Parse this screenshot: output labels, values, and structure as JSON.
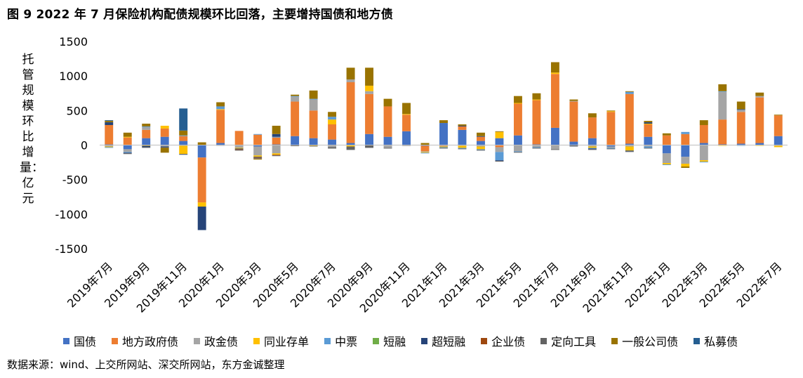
{
  "title": "图 9  2022 年 7 月保险机构配债规模环比回落，主要增持国债和地方债",
  "source": "数据来源：wind、上交所网站、深交所网站，东方金诚整理",
  "chart_data": {
    "type": "bar",
    "stacked": true,
    "title": "图 9  2022 年 7 月保险机构配债规模环比回落，主要增持国债和地方债",
    "ylabel": "托管规模环比增量：亿元",
    "ylim": [
      -1500,
      1500
    ],
    "yticks": [
      1500,
      1000,
      500,
      0,
      -500,
      -1000,
      -1500
    ],
    "ytick_labels": [
      "1500",
      "1000",
      "500",
      "0",
      "-500",
      "-1000",
      "-1500"
    ],
    "grid": false,
    "legend_position": "bottom",
    "x_tick_labels": [
      "2019年7月",
      "2019年9月",
      "2019年11月",
      "2020年1月",
      "2020年3月",
      "2020年5月",
      "2020年7月",
      "2020年9月",
      "2020年11月",
      "2021年1月",
      "2021年3月",
      "2021年5月",
      "2021年7月",
      "2021年9月",
      "2021年11月",
      "2022年1月",
      "2022年3月",
      "2022年5月",
      "2022年7月"
    ],
    "categories": [
      "2019-07",
      "2019-08",
      "2019-09",
      "2019-10",
      "2019-11",
      "2019-12",
      "2020-01",
      "2020-02",
      "2020-03",
      "2020-04",
      "2020-05",
      "2020-06",
      "2020-07",
      "2020-08",
      "2020-09",
      "2020-10",
      "2020-11",
      "2020-12",
      "2021-01",
      "2021-02",
      "2021-03",
      "2021-04",
      "2021-05",
      "2021-06",
      "2021-07",
      "2021-08",
      "2021-09",
      "2021-10",
      "2021-11",
      "2021-12",
      "2022-01",
      "2022-02",
      "2022-03",
      "2022-04",
      "2022-05",
      "2022-06",
      "2022-07"
    ],
    "series": [
      {
        "name": "国债",
        "color": "#4472C4",
        "values": [
          10,
          -60,
          100,
          120,
          60,
          -180,
          30,
          5,
          -20,
          10,
          130,
          100,
          80,
          30,
          160,
          120,
          200,
          -10,
          320,
          220,
          60,
          100,
          140,
          10,
          250,
          50,
          100,
          -20,
          20,
          120,
          -120,
          -170,
          30,
          10,
          20,
          30,
          130
        ]
      },
      {
        "name": "地方政府债",
        "color": "#ED7D31",
        "values": [
          280,
          110,
          120,
          120,
          70,
          -650,
          480,
          200,
          150,
          100,
          500,
          400,
          220,
          880,
          580,
          440,
          240,
          -80,
          -10,
          50,
          60,
          -30,
          460,
          640,
          780,
          580,
          300,
          480,
          720,
          180,
          140,
          160,
          260,
          360,
          460,
          660,
          300
        ]
      },
      {
        "name": "政金债",
        "color": "#A5A5A5",
        "values": [
          -20,
          -40,
          40,
          -20,
          -10,
          0,
          -10,
          -40,
          -130,
          -120,
          70,
          160,
          -30,
          40,
          40,
          -40,
          0,
          -10,
          -10,
          -10,
          -20,
          -70,
          -90,
          -30,
          -60,
          10,
          -20,
          -20,
          -20,
          -20,
          -140,
          -100,
          -220,
          400,
          30,
          20,
          -10
        ]
      },
      {
        "name": "同业存单",
        "color": "#FFC000",
        "values": [
          -10,
          10,
          -10,
          40,
          -120,
          -60,
          10,
          -10,
          -20,
          -20,
          -5,
          -10,
          70,
          -20,
          80,
          0,
          10,
          -10,
          -10,
          -30,
          -40,
          90,
          10,
          10,
          20,
          0,
          -20,
          10,
          -60,
          10,
          -20,
          -40,
          -20,
          -10,
          0,
          -10,
          -20
        ]
      },
      {
        "name": "中票",
        "color": "#5B9BD5",
        "values": [
          -10,
          -10,
          10,
          0,
          10,
          0,
          40,
          0,
          10,
          10,
          10,
          10,
          40,
          0,
          0,
          0,
          0,
          -10,
          -10,
          -10,
          -10,
          -120,
          -10,
          -10,
          0,
          0,
          -10,
          -10,
          30,
          -20,
          -10,
          30,
          -10,
          10,
          -10,
          0,
          0
        ]
      },
      {
        "name": "短融",
        "color": "#70AD47",
        "values": [
          0,
          0,
          0,
          0,
          0,
          0,
          0,
          0,
          0,
          0,
          0,
          0,
          0,
          0,
          0,
          0,
          0,
          0,
          0,
          0,
          0,
          0,
          0,
          0,
          0,
          0,
          0,
          0,
          0,
          0,
          0,
          0,
          0,
          0,
          0,
          0,
          0
        ]
      },
      {
        "name": "超短融",
        "color": "#264478",
        "values": [
          40,
          -10,
          -20,
          -10,
          -10,
          -340,
          0,
          -10,
          -10,
          40,
          0,
          0,
          0,
          0,
          0,
          0,
          0,
          0,
          0,
          10,
          10,
          -10,
          0,
          0,
          0,
          -10,
          -10,
          0,
          -10,
          20,
          0,
          0,
          0,
          0,
          10,
          0,
          0
        ]
      },
      {
        "name": "企业债",
        "color": "#9E480E",
        "values": [
          0,
          0,
          0,
          0,
          0,
          0,
          0,
          -10,
          -10,
          -10,
          0,
          0,
          0,
          0,
          0,
          0,
          0,
          0,
          0,
          0,
          0,
          0,
          0,
          0,
          0,
          0,
          0,
          0,
          0,
          0,
          0,
          0,
          0,
          0,
          0,
          0,
          0
        ]
      },
      {
        "name": "定向工具",
        "color": "#636363",
        "values": [
          0,
          -10,
          -10,
          -10,
          0,
          0,
          0,
          -10,
          -10,
          -10,
          -10,
          -10,
          -20,
          -50,
          -40,
          -10,
          -10,
          0,
          -10,
          -10,
          -10,
          -10,
          -10,
          -10,
          -10,
          -10,
          -10,
          -10,
          -10,
          -10,
          0,
          0,
          0,
          0,
          0,
          0,
          0
        ]
      },
      {
        "name": "一般公司债",
        "color": "#997300",
        "values": [
          20,
          60,
          40,
          -70,
          70,
          40,
          60,
          0,
          -10,
          120,
          20,
          120,
          70,
          170,
          260,
          110,
          160,
          30,
          40,
          20,
          50,
          10,
          100,
          90,
          150,
          20,
          60,
          10,
          10,
          20,
          30,
          -20,
          70,
          100,
          110,
          50,
          10
        ]
      },
      {
        "name": "私募债",
        "color": "#255E91",
        "values": [
          10,
          0,
          0,
          0,
          320,
          0,
          0,
          0,
          0,
          0,
          0,
          0,
          0,
          0,
          0,
          0,
          0,
          0,
          0,
          0,
          0,
          0,
          0,
          0,
          0,
          0,
          0,
          0,
          0,
          0,
          0,
          0,
          0,
          0,
          0,
          0,
          0
        ]
      }
    ]
  },
  "legend": [
    {
      "label": "国债",
      "color": "#4472C4"
    },
    {
      "label": "地方政府债",
      "color": "#ED7D31"
    },
    {
      "label": "政金债",
      "color": "#A5A5A5"
    },
    {
      "label": "同业存单",
      "color": "#FFC000"
    },
    {
      "label": "中票",
      "color": "#5B9BD5"
    },
    {
      "label": "短融",
      "color": "#70AD47"
    },
    {
      "label": "超短融",
      "color": "#264478"
    },
    {
      "label": "企业债",
      "color": "#9E480E"
    },
    {
      "label": "定向工具",
      "color": "#636363"
    },
    {
      "label": "一般公司债",
      "color": "#997300"
    },
    {
      "label": "私募债",
      "color": "#255E91"
    }
  ]
}
